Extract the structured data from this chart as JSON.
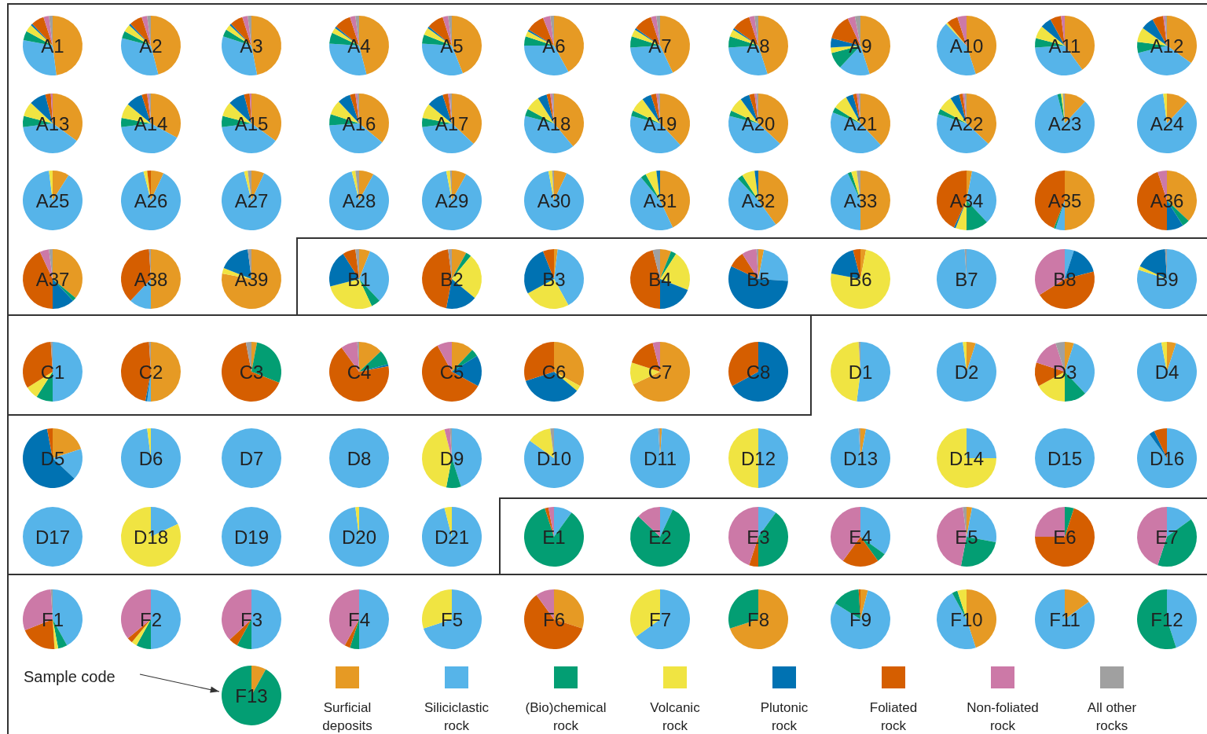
{
  "chart_data": {
    "type": "pie",
    "legend": "bottom",
    "annotations": [
      "Sample code"
    ],
    "categories": [
      "Surficial deposits",
      "Siliciclastic rock",
      "(Bio)chemical rock",
      "Volcanic rock",
      "Plutonic rock",
      "Foliated rock",
      "Non-foliated rock",
      "All other rocks"
    ],
    "colors": [
      "#e69a24",
      "#56b4e9",
      "#039e73",
      "#f0e442",
      "#0072b2",
      "#d55e00",
      "#cc79a7",
      "#a0a0a0"
    ],
    "series": [
      {
        "name": "A1",
        "values": [
          48,
          30,
          5,
          4,
          1,
          7,
          3,
          2
        ]
      },
      {
        "name": "A2",
        "values": [
          46,
          33,
          4,
          4,
          1,
          7,
          3,
          2
        ]
      },
      {
        "name": "A3",
        "values": [
          47,
          33,
          4,
          3,
          1,
          7,
          3,
          2
        ]
      },
      {
        "name": "A4",
        "values": [
          46,
          30,
          6,
          3,
          1,
          9,
          3,
          2
        ]
      },
      {
        "name": "A5",
        "values": [
          44,
          32,
          5,
          4,
          1,
          9,
          3,
          2
        ]
      },
      {
        "name": "A6",
        "values": [
          42,
          33,
          5,
          3,
          1,
          10,
          4,
          2
        ]
      },
      {
        "name": "A7",
        "values": [
          43,
          31,
          6,
          4,
          1,
          10,
          3,
          2
        ]
      },
      {
        "name": "A8",
        "values": [
          45,
          29,
          6,
          4,
          1,
          10,
          3,
          2
        ]
      },
      {
        "name": "A9",
        "values": [
          45,
          17,
          9,
          3,
          5,
          14,
          4,
          3
        ]
      },
      {
        "name": "A10",
        "values": [
          45,
          43,
          0,
          1,
          0,
          6,
          5,
          0
        ]
      },
      {
        "name": "A11",
        "values": [
          40,
          34,
          5,
          7,
          6,
          6,
          2,
          0
        ]
      },
      {
        "name": "A12",
        "values": [
          35,
          36,
          6,
          8,
          7,
          6,
          1,
          1
        ]
      },
      {
        "name": "A13",
        "values": [
          35,
          38,
          6,
          8,
          9,
          3,
          1,
          0
        ]
      },
      {
        "name": "A14",
        "values": [
          33,
          40,
          5,
          8,
          9,
          3,
          1,
          1
        ]
      },
      {
        "name": "A15",
        "values": [
          35,
          38,
          6,
          8,
          9,
          3,
          1,
          0
        ]
      },
      {
        "name": "A16",
        "values": [
          36,
          38,
          6,
          8,
          7,
          3,
          1,
          1
        ]
      },
      {
        "name": "A17",
        "values": [
          37,
          36,
          5,
          8,
          9,
          3,
          1,
          1
        ]
      },
      {
        "name": "A18",
        "values": [
          39,
          40,
          4,
          8,
          5,
          2,
          1,
          1
        ]
      },
      {
        "name": "A19",
        "values": [
          38,
          41,
          3,
          8,
          5,
          3,
          1,
          1
        ]
      },
      {
        "name": "A20",
        "values": [
          37,
          42,
          3,
          8,
          5,
          3,
          1,
          1
        ]
      },
      {
        "name": "A21",
        "values": [
          38,
          43,
          3,
          8,
          4,
          2,
          1,
          1
        ]
      },
      {
        "name": "A22",
        "values": [
          37,
          43,
          3,
          8,
          5,
          2,
          1,
          1
        ]
      },
      {
        "name": "A23",
        "values": [
          12,
          84,
          2,
          1,
          0,
          0,
          0,
          1
        ]
      },
      {
        "name": "A24",
        "values": [
          12,
          86,
          0,
          2,
          0,
          0,
          0,
          0
        ]
      },
      {
        "name": "A25",
        "values": [
          9,
          89,
          0,
          2,
          0,
          0,
          0,
          0
        ]
      },
      {
        "name": "A26",
        "values": [
          7,
          89,
          0,
          2,
          0,
          2,
          0,
          0
        ]
      },
      {
        "name": "A27",
        "values": [
          7,
          89,
          0,
          2,
          0,
          0,
          0,
          2
        ]
      },
      {
        "name": "A28",
        "values": [
          8,
          88,
          0,
          2,
          0,
          0,
          0,
          2
        ]
      },
      {
        "name": "A29",
        "values": [
          8,
          89,
          0,
          2,
          0,
          0,
          0,
          1
        ]
      },
      {
        "name": "A30",
        "values": [
          7,
          90,
          0,
          2,
          0,
          0,
          0,
          1
        ]
      },
      {
        "name": "A31",
        "values": [
          43,
          46,
          3,
          6,
          2,
          0,
          0,
          0
        ]
      },
      {
        "name": "A32",
        "values": [
          40,
          48,
          3,
          7,
          2,
          0,
          0,
          0
        ]
      },
      {
        "name": "A33",
        "values": [
          50,
          43,
          2,
          3,
          0,
          0,
          0,
          2
        ]
      },
      {
        "name": "A34",
        "values": [
          3,
          35,
          12,
          6,
          1,
          43,
          0,
          0
        ]
      },
      {
        "name": "A35",
        "values": [
          50,
          5,
          1,
          0,
          0,
          44,
          0,
          0
        ]
      },
      {
        "name": "A36",
        "values": [
          37,
          0,
          4,
          0,
          9,
          45,
          5,
          0
        ]
      },
      {
        "name": "A37",
        "values": [
          36,
          0,
          2,
          0,
          12,
          43,
          5,
          2
        ]
      },
      {
        "name": "A38",
        "values": [
          50,
          12,
          0,
          0,
          0,
          37,
          0,
          1
        ]
      },
      {
        "name": "A39",
        "values": [
          78,
          0,
          0,
          3,
          17,
          0,
          0,
          2
        ]
      },
      {
        "name": "B1",
        "values": [
          6,
          32,
          5,
          28,
          20,
          7,
          0,
          2
        ]
      },
      {
        "name": "B2",
        "values": [
          8,
          0,
          3,
          25,
          17,
          45,
          0,
          2
        ]
      },
      {
        "name": "B3",
        "values": [
          2,
          40,
          0,
          25,
          27,
          6,
          0,
          0
        ]
      },
      {
        "name": "B4",
        "values": [
          6,
          0,
          3,
          22,
          19,
          46,
          0,
          4
        ]
      },
      {
        "name": "B5",
        "values": [
          3,
          23,
          0,
          0,
          56,
          9,
          8,
          1
        ]
      },
      {
        "name": "B6",
        "values": [
          3,
          0,
          0,
          75,
          18,
          4,
          0,
          0
        ]
      },
      {
        "name": "B7",
        "values": [
          0,
          99,
          0,
          0,
          0,
          0,
          0,
          1
        ]
      },
      {
        "name": "B8",
        "values": [
          0,
          5,
          0,
          0,
          16,
          45,
          34,
          0
        ]
      },
      {
        "name": "B9",
        "values": [
          0,
          80,
          0,
          2,
          17,
          0,
          0,
          1
        ]
      },
      {
        "name": "C1",
        "values": [
          0,
          50,
          9,
          7,
          0,
          33,
          0,
          1
        ]
      },
      {
        "name": "C2",
        "values": [
          50,
          2,
          0,
          0,
          1,
          46,
          0,
          1
        ]
      },
      {
        "name": "C3",
        "values": [
          3,
          0,
          28,
          0,
          0,
          66,
          0,
          3
        ]
      },
      {
        "name": "C4",
        "values": [
          13,
          0,
          8,
          0,
          1,
          68,
          9,
          1
        ]
      },
      {
        "name": "C5",
        "values": [
          12,
          0,
          4,
          0,
          17,
          59,
          8,
          0
        ]
      },
      {
        "name": "C6",
        "values": [
          33,
          0,
          0,
          3,
          34,
          30,
          0,
          0
        ]
      },
      {
        "name": "C7",
        "values": [
          68,
          0,
          0,
          12,
          0,
          16,
          4,
          0
        ]
      },
      {
        "name": "C8",
        "values": [
          0,
          0,
          0,
          0,
          67,
          33,
          0,
          0
        ]
      },
      {
        "name": "D1",
        "values": [
          0,
          52,
          0,
          47,
          0,
          0,
          0,
          1
        ]
      },
      {
        "name": "D2",
        "values": [
          5,
          93,
          0,
          2,
          0,
          0,
          0,
          0
        ]
      },
      {
        "name": "D3",
        "values": [
          5,
          33,
          12,
          17,
          0,
          13,
          15,
          5
        ]
      },
      {
        "name": "D4",
        "values": [
          5,
          92,
          0,
          3,
          0,
          0,
          0,
          0
        ]
      },
      {
        "name": "D5",
        "values": [
          20,
          17,
          0,
          0,
          60,
          3,
          0,
          0
        ]
      },
      {
        "name": "D6",
        "values": [
          0,
          98,
          0,
          2,
          0,
          0,
          0,
          0
        ]
      },
      {
        "name": "D7",
        "values": [
          0,
          100,
          0,
          0,
          0,
          0,
          0,
          0
        ]
      },
      {
        "name": "D8",
        "values": [
          0,
          100,
          0,
          0,
          0,
          0,
          0,
          0
        ]
      },
      {
        "name": "D9",
        "values": [
          0,
          45,
          8,
          43,
          0,
          0,
          3,
          1
        ]
      },
      {
        "name": "D10",
        "values": [
          0,
          85,
          0,
          13,
          0,
          0,
          0,
          2
        ]
      },
      {
        "name": "D11",
        "values": [
          1,
          98,
          0,
          0,
          0,
          0,
          0,
          1
        ]
      },
      {
        "name": "D12",
        "values": [
          0,
          50,
          0,
          50,
          0,
          0,
          0,
          0
        ]
      },
      {
        "name": "D13",
        "values": [
          3,
          96,
          0,
          0,
          0,
          0,
          0,
          1
        ]
      },
      {
        "name": "D14",
        "values": [
          0,
          25,
          0,
          75,
          0,
          0,
          0,
          0
        ]
      },
      {
        "name": "D15",
        "values": [
          0,
          100,
          0,
          0,
          0,
          0,
          0,
          0
        ]
      },
      {
        "name": "D16",
        "values": [
          0,
          90,
          0,
          0,
          3,
          7,
          0,
          0
        ]
      },
      {
        "name": "D17",
        "values": [
          0,
          100,
          0,
          0,
          0,
          0,
          0,
          0
        ]
      },
      {
        "name": "D18",
        "values": [
          0,
          18,
          0,
          82,
          0,
          0,
          0,
          0
        ]
      },
      {
        "name": "D19",
        "values": [
          0,
          100,
          0,
          0,
          0,
          0,
          0,
          0
        ]
      },
      {
        "name": "D20",
        "values": [
          0,
          98,
          0,
          2,
          0,
          0,
          0,
          0
        ]
      },
      {
        "name": "D21",
        "values": [
          0,
          96,
          0,
          4,
          0,
          0,
          0,
          0
        ]
      },
      {
        "name": "E1",
        "values": [
          0,
          10,
          85,
          0,
          0,
          2,
          3,
          0
        ]
      },
      {
        "name": "E2",
        "values": [
          0,
          7,
          80,
          0,
          0,
          0,
          13,
          0
        ]
      },
      {
        "name": "E3",
        "values": [
          0,
          10,
          40,
          0,
          0,
          5,
          45,
          0
        ]
      },
      {
        "name": "E4",
        "values": [
          0,
          35,
          5,
          0,
          0,
          20,
          40,
          0
        ]
      },
      {
        "name": "E5",
        "values": [
          3,
          25,
          25,
          0,
          0,
          0,
          45,
          2
        ]
      },
      {
        "name": "E6",
        "values": [
          0,
          0,
          5,
          0,
          0,
          70,
          25,
          0
        ]
      },
      {
        "name": "E7",
        "values": [
          0,
          15,
          40,
          0,
          0,
          0,
          45,
          0
        ]
      },
      {
        "name": "F1",
        "values": [
          0,
          42,
          5,
          2,
          0,
          20,
          30,
          1
        ]
      },
      {
        "name": "F2",
        "values": [
          0,
          50,
          8,
          3,
          0,
          3,
          36,
          0
        ]
      },
      {
        "name": "F3",
        "values": [
          0,
          50,
          8,
          0,
          0,
          5,
          37,
          0
        ]
      },
      {
        "name": "F4",
        "values": [
          0,
          50,
          5,
          0,
          0,
          3,
          42,
          0
        ]
      },
      {
        "name": "F5",
        "values": [
          0,
          70,
          0,
          30,
          0,
          0,
          0,
          0
        ]
      },
      {
        "name": "F6",
        "values": [
          30,
          0,
          0,
          0,
          0,
          60,
          10,
          0
        ]
      },
      {
        "name": "F7",
        "values": [
          0,
          65,
          0,
          35,
          0,
          0,
          0,
          0
        ]
      },
      {
        "name": "F8",
        "values": [
          70,
          0,
          30,
          0,
          0,
          0,
          0,
          0
        ]
      },
      {
        "name": "F9",
        "values": [
          4,
          80,
          15,
          0,
          0,
          1,
          0,
          0
        ]
      },
      {
        "name": "F10",
        "values": [
          45,
          47,
          3,
          5,
          0,
          0,
          0,
          0
        ]
      },
      {
        "name": "F11",
        "values": [
          15,
          85,
          0,
          0,
          0,
          0,
          0,
          0
        ]
      },
      {
        "name": "F12",
        "values": [
          0,
          45,
          55,
          0,
          0,
          0,
          0,
          0
        ]
      },
      {
        "name": "F13",
        "values": [
          8,
          0,
          92,
          0,
          0,
          0,
          0,
          0
        ]
      }
    ]
  }
}
